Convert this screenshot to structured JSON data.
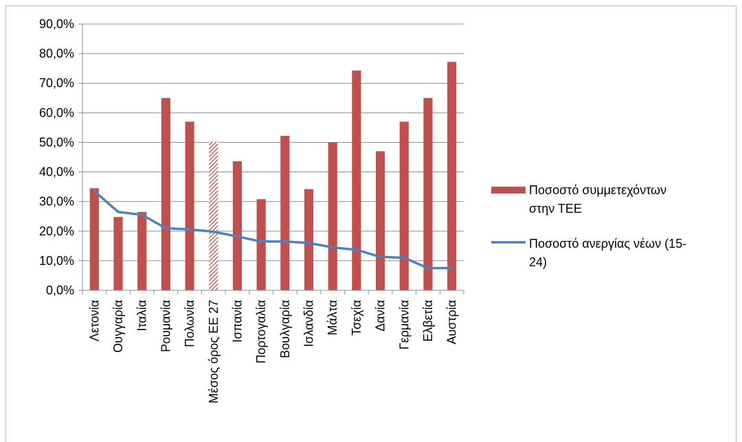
{
  "chart_data": {
    "type": "bar",
    "categories": [
      "Λετονία",
      "Ουγγαρία",
      "Ιταλία",
      "Ρουμανία",
      "Πολωνία",
      "Μέσος όρος ΕΕ 27",
      "Ισπανία",
      "Πορτογαλία",
      "Βουλγαρία",
      "Ισλανδία",
      "Μάλτα",
      "Τσεχία",
      "Δανία",
      "Γερμανία",
      "Ελβετία",
      "Αυστρία"
    ],
    "series": [
      {
        "name": "Ποσοστό συμμετεχόντων στην ΤΕΕ",
        "type": "bar",
        "color": "#c0504d",
        "highlight_category": "Μέσος όρος ΕΕ 27",
        "highlight_pattern": "hatched",
        "values": [
          34.5,
          24.8,
          26.5,
          65.0,
          57.0,
          50.3,
          43.6,
          30.8,
          52.2,
          34.2,
          50.0,
          74.3,
          47.0,
          57.0,
          65.0,
          77.2
        ]
      },
      {
        "name": "Ποσοστό ανεργίας νέων (15-24)",
        "type": "line",
        "color": "#4f81bd",
        "values": [
          33.5,
          26.5,
          25.5,
          21.0,
          20.6,
          19.8,
          18.2,
          16.5,
          16.5,
          16.0,
          14.5,
          13.7,
          11.3,
          11.0,
          7.5,
          7.5
        ]
      }
    ],
    "y_ticks": [
      "0,0%",
      "10,0%",
      "20,0%",
      "30,0%",
      "40,0%",
      "50,0%",
      "60,0%",
      "70,0%",
      "80,0%",
      "90,0%"
    ],
    "ylim": [
      0,
      90
    ],
    "grid": "horizontal",
    "legend_position": "right"
  },
  "legend": {
    "items": [
      {
        "lines": [
          "Ποσοστό συμμετεχόντων",
          "στην ΤΕΕ"
        ],
        "kind": "bar",
        "color": "#c0504d"
      },
      {
        "lines": [
          "Ποσοστό ανεργίας νέων (15-",
          "24)"
        ],
        "kind": "line",
        "color": "#4f81bd"
      }
    ]
  }
}
